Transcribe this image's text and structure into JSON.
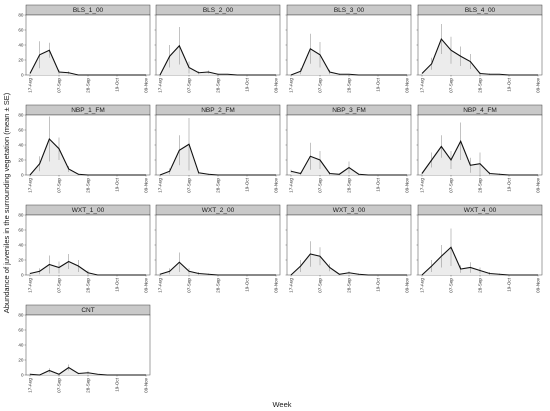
{
  "figure": {
    "xlabel": "Week",
    "ylabel": "Abundance of juveniles in the surrounding vegetation (mean ± SE)"
  },
  "colors": {
    "strip_fill": "#c9c9c9",
    "strip_border": "#444444",
    "panel_border": "#444444",
    "line": "#111111",
    "area_fill": "#ececec",
    "error_bar": "#9a9a9a"
  },
  "chart_data": {
    "type": "line",
    "facet_layout": {
      "columns": 4,
      "rows": 4
    },
    "shared_axes": true,
    "x_tick_labels": [
      "17-Aug",
      "07-Sep",
      "28-Sep",
      "19-Oct",
      "09-Nov"
    ],
    "y_tick_labels": [
      0,
      20,
      40,
      60,
      80
    ],
    "ylim": [
      0,
      80
    ],
    "grid": false,
    "x": [
      0,
      1,
      2,
      3,
      4,
      5,
      6,
      7,
      8,
      9,
      10,
      11,
      12
    ],
    "panels": [
      {
        "title": "BLS_1_00",
        "values": [
          2,
          27,
          33,
          4,
          3,
          0,
          0,
          0,
          0,
          0,
          0,
          0,
          0
        ],
        "se": [
          0,
          18,
          10,
          3,
          2,
          0,
          0,
          0,
          0,
          0,
          0,
          0,
          0
        ]
      },
      {
        "title": "BLS_2_00",
        "values": [
          0,
          25,
          39,
          10,
          3,
          4,
          1,
          1,
          0,
          0,
          0,
          0,
          0
        ],
        "se": [
          0,
          15,
          25,
          8,
          2,
          2,
          1,
          0,
          0,
          0,
          0,
          0,
          0
        ]
      },
      {
        "title": "BLS_3_00",
        "values": [
          0,
          5,
          35,
          27,
          4,
          1,
          1,
          0,
          0,
          0,
          0,
          0,
          0
        ],
        "se": [
          0,
          4,
          20,
          17,
          3,
          1,
          0,
          0,
          0,
          0,
          0,
          0,
          0
        ]
      },
      {
        "title": "BLS_4_00",
        "values": [
          2,
          15,
          48,
          33,
          25,
          18,
          2,
          1,
          1,
          0,
          0,
          0,
          0
        ],
        "se": [
          0,
          8,
          20,
          18,
          13,
          10,
          2,
          1,
          0,
          0,
          0,
          0,
          0
        ]
      },
      {
        "title": "NBP_1_FM",
        "values": [
          0,
          15,
          48,
          35,
          8,
          1,
          0,
          0,
          0,
          0,
          0,
          0,
          0
        ],
        "se": [
          0,
          10,
          30,
          15,
          4,
          1,
          0,
          0,
          0,
          0,
          0,
          0,
          0
        ]
      },
      {
        "title": "NBP_2_FM",
        "values": [
          0,
          5,
          33,
          41,
          3,
          1,
          0,
          0,
          0,
          0,
          0,
          0,
          0
        ],
        "se": [
          0,
          4,
          20,
          35,
          2,
          1,
          0,
          0,
          0,
          0,
          0,
          0,
          0
        ]
      },
      {
        "title": "NBP_3_FM",
        "values": [
          5,
          2,
          25,
          20,
          2,
          1,
          10,
          1,
          0,
          0,
          0,
          0,
          0
        ],
        "se": [
          2,
          2,
          18,
          12,
          2,
          1,
          8,
          1,
          0,
          0,
          0,
          0,
          0
        ]
      },
      {
        "title": "NBP_4_FM",
        "values": [
          2,
          20,
          38,
          20,
          45,
          13,
          15,
          2,
          1,
          0,
          0,
          0,
          0
        ],
        "se": [
          1,
          10,
          15,
          12,
          25,
          10,
          15,
          2,
          1,
          0,
          0,
          0,
          0
        ]
      },
      {
        "title": "WXT_1_00",
        "values": [
          2,
          5,
          14,
          10,
          18,
          12,
          3,
          0,
          0,
          0,
          0,
          0,
          0
        ],
        "se": [
          1,
          4,
          12,
          8,
          10,
          8,
          3,
          0,
          0,
          0,
          0,
          0,
          0
        ]
      },
      {
        "title": "WXT_2_00",
        "values": [
          1,
          5,
          17,
          5,
          2,
          1,
          0,
          0,
          0,
          0,
          0,
          0,
          0
        ],
        "se": [
          1,
          4,
          13,
          4,
          2,
          1,
          0,
          0,
          0,
          0,
          0,
          0,
          0
        ]
      },
      {
        "title": "WXT_3_00",
        "values": [
          0,
          12,
          28,
          25,
          10,
          1,
          3,
          1,
          0,
          0,
          0,
          0,
          0
        ],
        "se": [
          0,
          8,
          17,
          12,
          5,
          1,
          2,
          1,
          0,
          0,
          0,
          0,
          0
        ]
      },
      {
        "title": "WXT_4_00",
        "values": [
          0,
          12,
          25,
          37,
          8,
          10,
          6,
          2,
          1,
          0,
          0,
          0,
          0
        ],
        "se": [
          0,
          8,
          15,
          25,
          5,
          7,
          4,
          2,
          1,
          0,
          0,
          0,
          0
        ]
      },
      {
        "title": "CNT",
        "values": [
          1,
          0,
          6,
          1,
          10,
          2,
          3,
          1,
          0,
          0,
          0,
          0,
          0
        ],
        "se": [
          1,
          0,
          3,
          1,
          4,
          1,
          2,
          0,
          0,
          0,
          0,
          0,
          0
        ]
      }
    ]
  }
}
